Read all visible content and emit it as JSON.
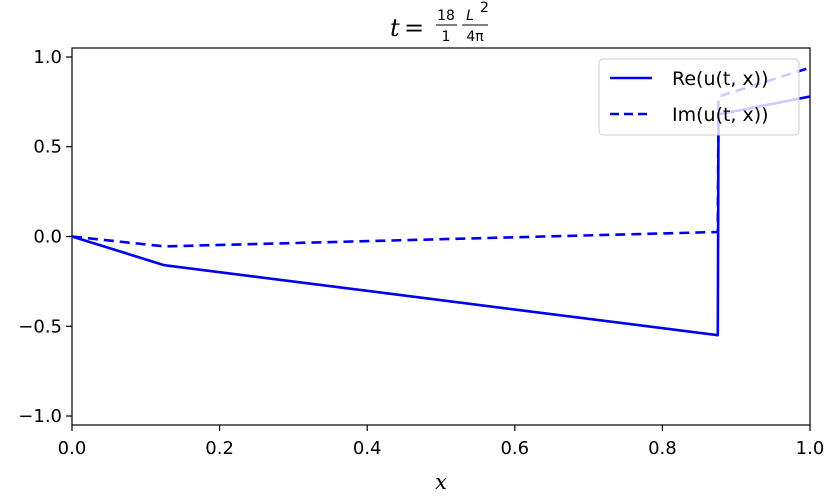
{
  "chart_data": {
    "type": "line",
    "title": {
      "lhs": "t",
      "eq": "=",
      "frac1_num": "18",
      "frac1_den": "1",
      "frac2_num": "L",
      "frac2_sup": "2",
      "frac2_den": "4π"
    },
    "xlabel": "x",
    "ylabel": "",
    "xlim": [
      0.0,
      1.0
    ],
    "ylim": [
      -1.05,
      1.05
    ],
    "xticks": [
      "0.0",
      "0.2",
      "0.4",
      "0.6",
      "0.8",
      "1.0"
    ],
    "yticks": [
      "1.0",
      "0.5",
      "0.0",
      "−0.5",
      "−1.0"
    ],
    "grid": false,
    "legend_position": "top-right",
    "series": [
      {
        "name": "Re(u(t, x))",
        "style": "solid",
        "color": "#0000ee",
        "x": [
          0.0,
          0.125,
          0.875,
          0.875,
          0.876,
          1.0
        ],
        "y": [
          0.0,
          -0.16,
          -0.55,
          -0.55,
          0.68,
          0.78
        ]
      },
      {
        "name": "Im(u(t, x))",
        "style": "dashed",
        "color": "#0000ee",
        "x": [
          0.0,
          0.125,
          0.875,
          0.875,
          0.876,
          1.0
        ],
        "y": [
          0.0,
          -0.055,
          0.025,
          0.025,
          0.78,
          0.94
        ]
      }
    ]
  }
}
